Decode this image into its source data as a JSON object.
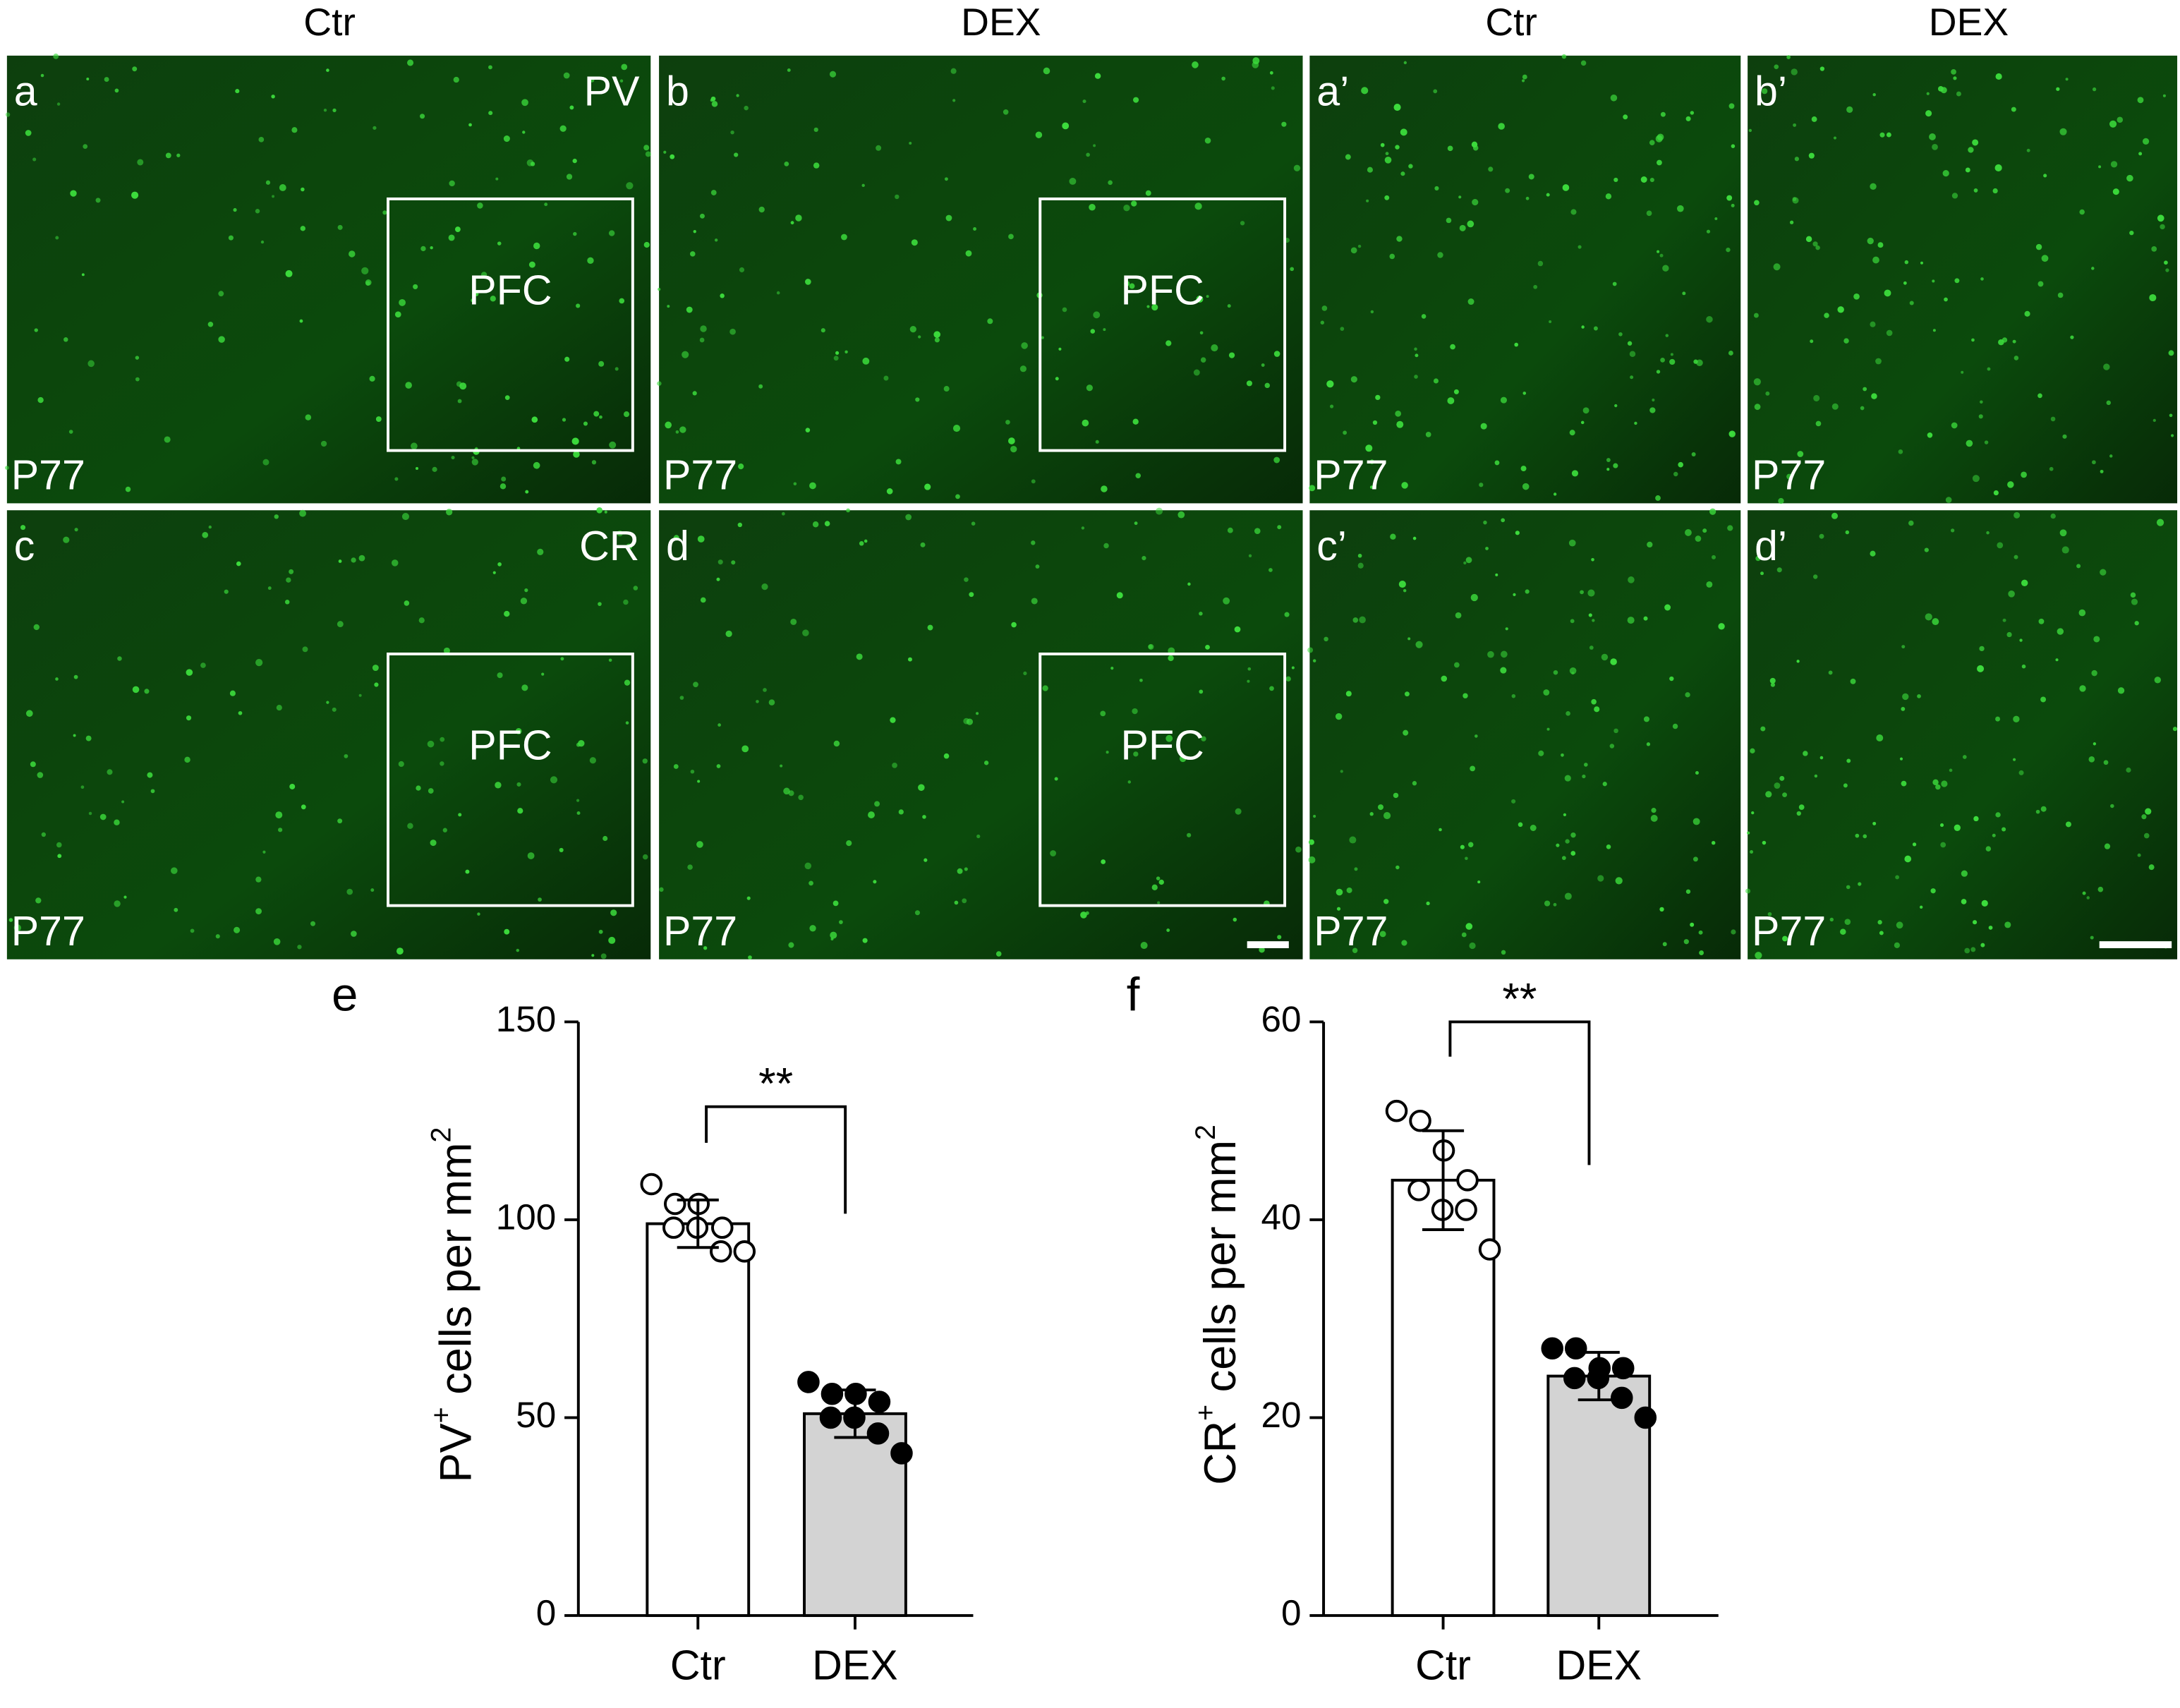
{
  "figure": {
    "columns": [
      "Ctr",
      "DEX",
      "Ctr",
      "DEX"
    ],
    "panels": [
      {
        "letter": "a",
        "marker": "PV",
        "region": "PFC",
        "age": "P77"
      },
      {
        "letter": "b",
        "region": "PFC",
        "age": "P77"
      },
      {
        "letter": "a’",
        "age": "P77"
      },
      {
        "letter": "b’",
        "age": "P77"
      },
      {
        "letter": "c",
        "marker": "CR",
        "region": "PFC",
        "age": "P77"
      },
      {
        "letter": "d",
        "region": "PFC",
        "age": "P77"
      },
      {
        "letter": "c’",
        "age": "P77"
      },
      {
        "letter": "d’",
        "age": "P77"
      }
    ]
  },
  "chart_data": [
    {
      "type": "bar",
      "panel_label": "e",
      "y_label": [
        "PV",
        "+",
        " cells per mm",
        "2"
      ],
      "categories": [
        "Ctr",
        "DEX"
      ],
      "values": [
        99,
        51
      ],
      "errors": [
        6,
        6
      ],
      "points": [
        [
          109,
          104,
          104,
          98,
          98,
          98,
          92,
          92
        ],
        [
          59,
          56,
          56,
          54,
          50,
          50,
          46,
          41
        ]
      ],
      "bar_colors": [
        "#ffffff",
        "#d3d3d3"
      ],
      "point_fill": [
        "#ffffff",
        "#000000"
      ],
      "ylim": [
        0,
        150
      ],
      "yticks": [
        0,
        50,
        100,
        150
      ],
      "annotation": "**"
    },
    {
      "type": "bar",
      "panel_label": "f",
      "y_label": [
        "CR",
        "+",
        " cells per mm",
        "2"
      ],
      "categories": [
        "Ctr",
        "DEX"
      ],
      "values": [
        44,
        24.2
      ],
      "errors": [
        5,
        2.4
      ],
      "points": [
        [
          51,
          50,
          47,
          44,
          43,
          41,
          41,
          37
        ],
        [
          27,
          27,
          25,
          25,
          24,
          24,
          22,
          20
        ]
      ],
      "bar_colors": [
        "#ffffff",
        "#d3d3d3"
      ],
      "point_fill": [
        "#ffffff",
        "#000000"
      ],
      "ylim": [
        0,
        60
      ],
      "yticks": [
        0,
        20,
        40,
        60
      ],
      "annotation": "**"
    }
  ]
}
